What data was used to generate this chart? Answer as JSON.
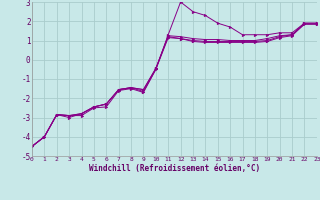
{
  "xlabel": "Windchill (Refroidissement éolien,°C)",
  "ylabel": "",
  "xlim": [
    0,
    23
  ],
  "ylim": [
    -5,
    3
  ],
  "bg_color": "#c8e8e8",
  "line_color": "#880088",
  "grid_color": "#aacccc",
  "lines": [
    [
      0,
      -4.5,
      1,
      -4.0,
      2,
      -2.85,
      3,
      -2.9,
      4,
      -2.9,
      5,
      -2.5,
      6,
      -2.45,
      7,
      -1.6,
      8,
      -1.5,
      9,
      -1.7,
      10,
      -0.5,
      11,
      1.3,
      12,
      3.0,
      13,
      2.5,
      14,
      2.3,
      15,
      1.9,
      16,
      1.7,
      17,
      1.3,
      18,
      1.3,
      19,
      1.3,
      20,
      1.4,
      21,
      1.4,
      22,
      1.9,
      23,
      1.9
    ],
    [
      0,
      -4.5,
      1,
      -4.0,
      2,
      -2.85,
      3,
      -2.9,
      4,
      -2.8,
      5,
      -2.45,
      6,
      -2.3,
      7,
      -1.55,
      8,
      -1.45,
      9,
      -1.55,
      10,
      -0.45,
      11,
      1.25,
      12,
      1.2,
      13,
      1.1,
      14,
      1.05,
      15,
      1.05,
      16,
      1.0,
      17,
      1.0,
      18,
      1.0,
      19,
      1.1,
      20,
      1.25,
      21,
      1.3,
      22,
      1.9,
      23,
      1.9
    ],
    [
      0,
      -4.5,
      1,
      -4.0,
      2,
      -2.85,
      3,
      -2.9,
      4,
      -2.8,
      5,
      -2.45,
      6,
      -2.3,
      7,
      -1.55,
      8,
      -1.45,
      9,
      -1.55,
      10,
      -0.45,
      11,
      1.2,
      12,
      1.1,
      13,
      1.0,
      14,
      0.95,
      15,
      0.95,
      16,
      0.95,
      17,
      0.95,
      18,
      0.95,
      19,
      1.0,
      20,
      1.2,
      21,
      1.3,
      22,
      1.85,
      23,
      1.85
    ],
    [
      0,
      -4.5,
      1,
      -4.0,
      2,
      -2.85,
      3,
      -3.0,
      4,
      -2.8,
      5,
      -2.45,
      6,
      -2.3,
      7,
      -1.55,
      8,
      -1.45,
      9,
      -1.65,
      10,
      -0.5,
      11,
      1.15,
      12,
      1.1,
      13,
      0.95,
      14,
      0.9,
      15,
      0.9,
      16,
      0.9,
      17,
      0.9,
      18,
      0.9,
      19,
      0.95,
      20,
      1.15,
      21,
      1.25,
      22,
      1.85,
      23,
      1.85
    ]
  ]
}
